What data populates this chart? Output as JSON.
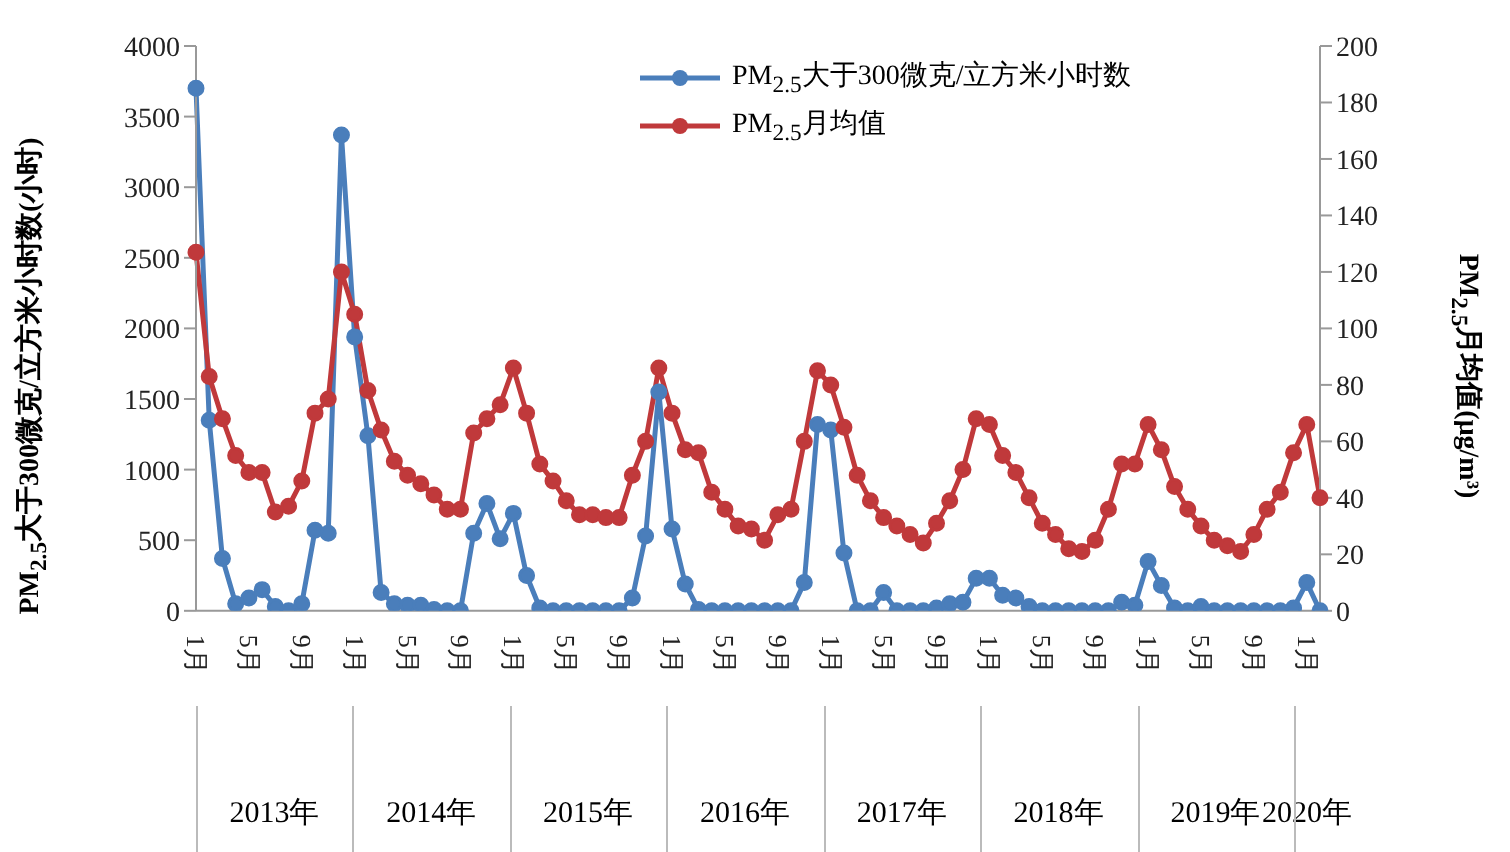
{
  "chart_data": {
    "type": "line",
    "categories": [
      "1月",
      null,
      null,
      null,
      "5月",
      null,
      null,
      null,
      "9月",
      null,
      null,
      null,
      "1月",
      null,
      null,
      null,
      "5月",
      null,
      null,
      null,
      "9月",
      null,
      null,
      null,
      "1月",
      null,
      null,
      null,
      "5月",
      null,
      null,
      null,
      "9月",
      null,
      null,
      null,
      "1月",
      null,
      null,
      null,
      "5月",
      null,
      null,
      null,
      "9月",
      null,
      null,
      null,
      "1月",
      null,
      null,
      null,
      "5月",
      null,
      null,
      null,
      "9月",
      null,
      null,
      null,
      "1月",
      null,
      null,
      null,
      "5月",
      null,
      null,
      null,
      "9月",
      null,
      null,
      null,
      "1月",
      null,
      null,
      null,
      "5月",
      null,
      null,
      null,
      "9月",
      null,
      null,
      null,
      "1月",
      null
    ],
    "series": [
      {
        "name": "PM$_{2.5}$大于300微克/立方米小时数",
        "color": "#4a7ebb",
        "axis": "y",
        "values": [
          3700,
          1350,
          370,
          50,
          90,
          150,
          30,
          0,
          50,
          570,
          550,
          3370,
          1940,
          1240,
          130,
          50,
          40,
          40,
          10,
          0,
          0,
          550,
          760,
          510,
          690,
          250,
          20,
          0,
          0,
          0,
          0,
          0,
          0,
          90,
          530,
          1550,
          580,
          190,
          10,
          0,
          0,
          0,
          0,
          0,
          0,
          0,
          200,
          1320,
          1280,
          410,
          0,
          0,
          130,
          0,
          0,
          0,
          20,
          50,
          60,
          230,
          230,
          110,
          90,
          30,
          0,
          0,
          0,
          0,
          0,
          0,
          60,
          40,
          350,
          180,
          20,
          0,
          30,
          0,
          0,
          0,
          0,
          0,
          0,
          20,
          200,
          0
        ]
      },
      {
        "name": "PM$_{2.5}$月均值",
        "color": "#c0393b",
        "axis": "y2",
        "values": [
          127,
          83,
          68,
          55,
          49,
          49,
          35,
          37,
          46,
          70,
          75,
          120,
          105,
          78,
          64,
          53,
          48,
          45,
          41,
          36,
          36,
          63,
          68,
          73,
          86,
          70,
          52,
          46,
          39,
          34,
          34,
          33,
          33,
          48,
          60,
          86,
          70,
          57,
          56,
          42,
          36,
          30,
          29,
          25,
          34,
          36,
          60,
          85,
          80,
          65,
          48,
          39,
          33,
          30,
          27,
          24,
          31,
          39,
          50,
          68,
          66,
          55,
          49,
          40,
          31,
          27,
          22,
          21,
          25,
          36,
          52,
          52,
          66,
          57,
          44,
          36,
          30,
          25,
          23,
          21,
          27,
          36,
          42,
          56,
          66,
          40
        ]
      }
    ],
    "ylabel": "PM$_{2.5}$大于300微克/立方米小时数(小时)",
    "y2label": "PM$_{2.5}$月均值(μg/m³)",
    "ylim": [
      0,
      4000
    ],
    "yticks": [
      0,
      500,
      1000,
      1500,
      2000,
      2500,
      3000,
      3500,
      4000
    ],
    "y2lim": [
      0,
      200
    ],
    "y2ticks": [
      0,
      20,
      40,
      60,
      80,
      100,
      120,
      140,
      160,
      180,
      200
    ],
    "annotations": [
      "2013年",
      "2014年",
      "2015年",
      "2016年",
      "2017年",
      "2018年",
      "2019年",
      "2020年"
    ],
    "marker": "circle",
    "legend": "top",
    "grid": false
  }
}
